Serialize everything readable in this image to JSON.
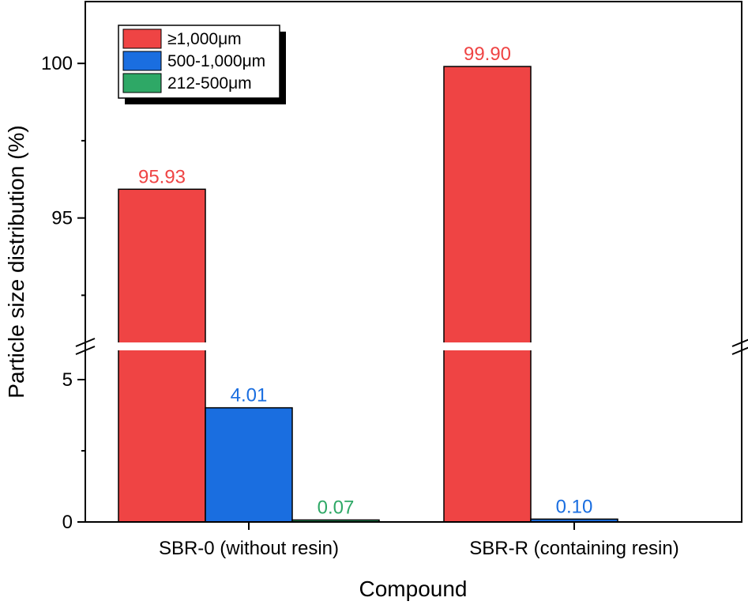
{
  "chart_data": {
    "type": "bar",
    "title": "",
    "xlabel": "Compound",
    "ylabel": "Particle size distribution (%)",
    "categories": [
      "SBR-0 (without resin)",
      "SBR-R (containing resin)"
    ],
    "y_axis_break": {
      "lower_range": [
        0,
        6
      ],
      "upper_range": [
        91,
        102
      ]
    },
    "y_ticks": {
      "lower": [
        "0",
        "5"
      ],
      "upper": [
        "95",
        "100"
      ]
    },
    "grid": false,
    "legend_position": "top-left",
    "series": [
      {
        "name": "≥1,000μm",
        "color": "#ef4444",
        "values": [
          95.93,
          99.9
        ],
        "labels": [
          "95.93",
          "99.90"
        ]
      },
      {
        "name": "500-1,000μm",
        "color": "#1a6ee0",
        "values": [
          4.01,
          0.1
        ],
        "labels": [
          "4.01",
          "0.10"
        ]
      },
      {
        "name": "212-500μm",
        "color": "#2ea866",
        "values": [
          0.07,
          0
        ],
        "labels": [
          "0.07",
          ""
        ]
      }
    ]
  }
}
